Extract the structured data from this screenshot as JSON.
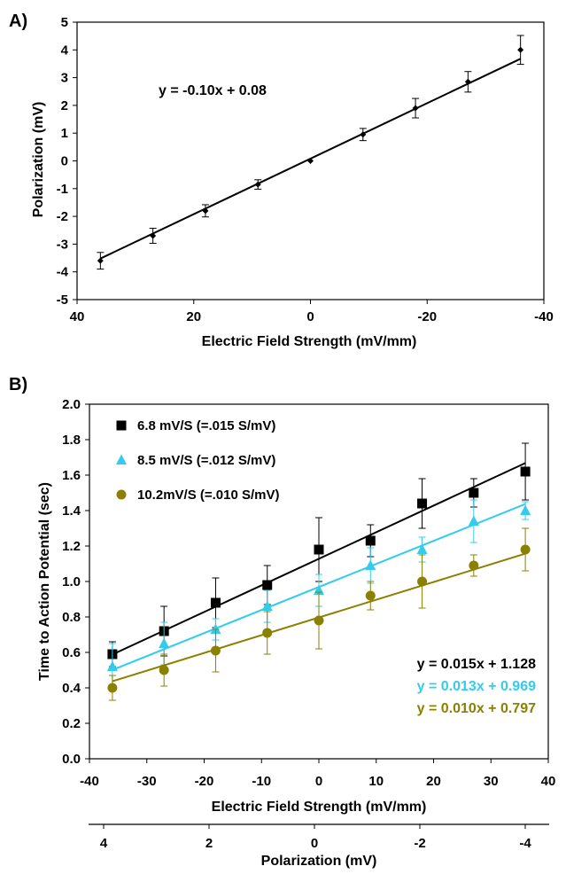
{
  "chart_data": [
    {
      "type": "scatter",
      "panel_label": "A)",
      "xlabel": "Electric Field Strength (mV/mm)",
      "ylabel": "Polarization (mV)",
      "xlim": [
        40,
        -40
      ],
      "ylim": [
        -5,
        5
      ],
      "xticks": [
        "40",
        "20",
        "0",
        "-20",
        "-40"
      ],
      "yticks": [
        "-5",
        "-4",
        "-3",
        "-2",
        "-1",
        "0",
        "1",
        "2",
        "3",
        "4",
        "5"
      ],
      "annotation": "y = -0.10x + 0.08",
      "fit": {
        "slope": -0.1,
        "intercept": 0.08
      },
      "points": [
        {
          "x": 36,
          "y": -3.6,
          "err": 0.3
        },
        {
          "x": 27,
          "y": -2.7,
          "err": 0.27
        },
        {
          "x": 18,
          "y": -1.8,
          "err": 0.22
        },
        {
          "x": 9,
          "y": -0.85,
          "err": 0.17
        },
        {
          "x": 0,
          "y": 0.0,
          "err": 0.0
        },
        {
          "x": -9,
          "y": 0.95,
          "err": 0.22
        },
        {
          "x": -18,
          "y": 1.9,
          "err": 0.35
        },
        {
          "x": -27,
          "y": 2.85,
          "err": 0.37
        },
        {
          "x": -36,
          "y": 4.0,
          "err": 0.52
        }
      ],
      "grid": false
    },
    {
      "type": "scatter",
      "panel_label": "B)",
      "xlabel": "Electric Field Strength (mV/mm)",
      "ylabel": "Time to Action Potential (sec)",
      "secondary_xlabel": "Polarization (mV)",
      "xlim": [
        -40,
        40
      ],
      "ylim": [
        0,
        2
      ],
      "xticks": [
        "-40",
        "-30",
        "-20",
        "-10",
        "0",
        "10",
        "20",
        "30",
        "40"
      ],
      "yticks": [
        "0.0",
        "0.2",
        "0.4",
        "0.6",
        "0.8",
        "1.0",
        "1.2",
        "1.4",
        "1.6",
        "1.8",
        "2.0"
      ],
      "secondary_xticks": [
        "4",
        "2",
        "0",
        "-2",
        "-4"
      ],
      "legend_position": "top-left",
      "grid": false,
      "x": [
        -36,
        -27,
        -18,
        -9,
        0,
        9,
        18,
        27,
        36
      ],
      "series": [
        {
          "name": "6.8 mV/S (=.015 S/mV)",
          "color": "#000000",
          "marker": "square",
          "equation": "y = 0.015x + 1.128",
          "fit": {
            "slope": 0.015,
            "intercept": 1.128
          },
          "values": [
            0.59,
            0.72,
            0.88,
            0.98,
            1.18,
            1.23,
            1.44,
            1.5,
            1.62
          ],
          "err": [
            0.07,
            0.14,
            0.14,
            0.11,
            0.18,
            0.09,
            0.14,
            0.08,
            0.16
          ]
        },
        {
          "name": "8.5 mV/S (=.012 S/mV)",
          "color": "#33ccee",
          "marker": "triangle",
          "equation": "y = 0.013x + 0.969",
          "fit": {
            "slope": 0.013,
            "intercept": 0.969
          },
          "values": [
            0.52,
            0.65,
            0.73,
            0.86,
            0.95,
            1.09,
            1.18,
            1.34,
            1.4
          ],
          "err": [
            0.13,
            0.12,
            0.06,
            0.09,
            0.09,
            0.1,
            0.07,
            0.12,
            0.05
          ]
        },
        {
          "name": "10.2mV/S (=.010 S/mV)",
          "color": "#8b8000",
          "marker": "circle",
          "equation": "y = 0.010x + 0.797",
          "fit": {
            "slope": 0.01,
            "intercept": 0.797
          },
          "values": [
            0.4,
            0.5,
            0.61,
            0.71,
            0.78,
            0.92,
            1.0,
            1.09,
            1.18
          ],
          "err": [
            0.07,
            0.09,
            0.12,
            0.12,
            0.16,
            0.08,
            0.15,
            0.06,
            0.12
          ]
        }
      ]
    }
  ]
}
